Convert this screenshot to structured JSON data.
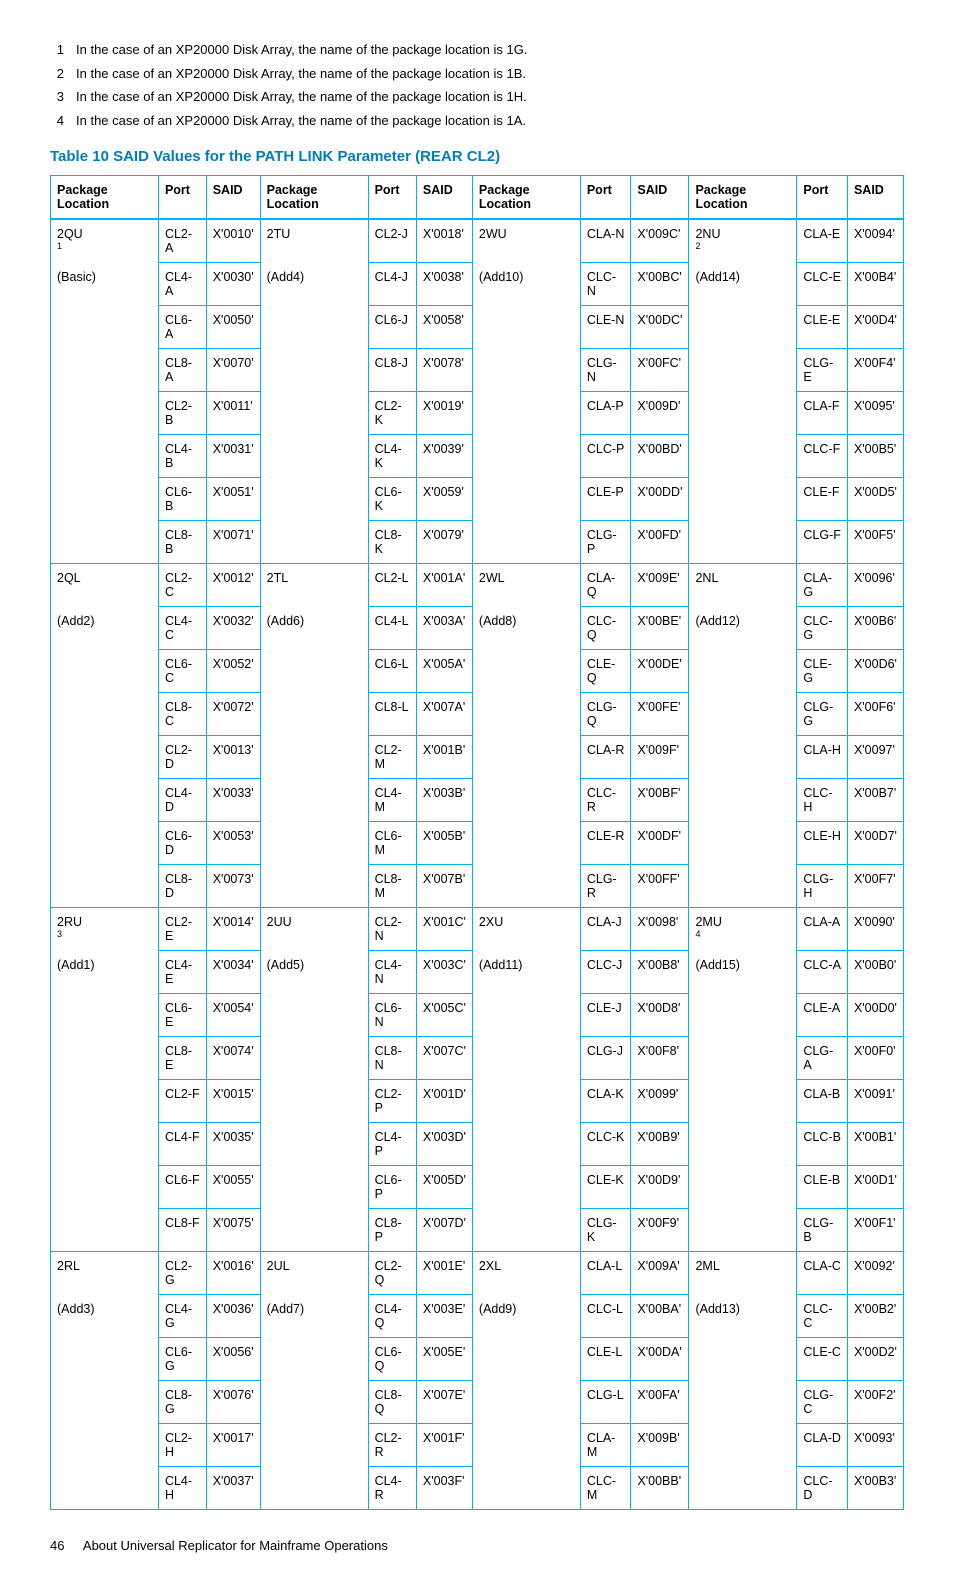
{
  "notes": [
    {
      "n": "1",
      "text": "In the case of an XP20000 Disk Array, the name of the package location is 1G."
    },
    {
      "n": "2",
      "text": "In the case of an XP20000 Disk Array, the name of the package location is 1B."
    },
    {
      "n": "3",
      "text": "In the case of an XP20000 Disk Array, the name of the package location is 1H."
    },
    {
      "n": "4",
      "text": "In the case of an XP20000 Disk Array, the name of the package location is 1A."
    }
  ],
  "table_title": "Table 10 SAID Values for the PATH LINK Parameter (REAR CL2)",
  "headers": [
    "Package Location",
    "Port",
    "SAID",
    "Package Location",
    "Port",
    "SAID",
    "Package Location",
    "Port",
    "SAID",
    "Package Location",
    "Port",
    "SAID"
  ],
  "groups": [
    {
      "pkgs": [
        {
          "line1": "2QU",
          "sub": "1",
          "line2": "(Basic)"
        },
        {
          "line1": "2TU",
          "sub": "",
          "line2": "(Add4)"
        },
        {
          "line1": "2WU",
          "sub": "",
          "line2": "(Add10)"
        },
        {
          "line1": "2NU",
          "sub": "2",
          "line2": "(Add14)"
        }
      ],
      "rows": [
        [
          "CL2-A",
          "X'0010'",
          "CL2-J",
          "X'0018'",
          "CLA-N",
          "X'009C'",
          "CLA-E",
          "X'0094'"
        ],
        [
          "CL4-A",
          "X'0030'",
          "CL4-J",
          "X'0038'",
          "CLC-N",
          "X'00BC'",
          "CLC-E",
          "X'00B4'"
        ],
        [
          "CL6-A",
          "X'0050'",
          "CL6-J",
          "X'0058'",
          "CLE-N",
          "X'00DC'",
          "CLE-E",
          "X'00D4'"
        ],
        [
          "CL8-A",
          "X'0070'",
          "CL8-J",
          "X'0078'",
          "CLG-N",
          "X'00FC'",
          "CLG-E",
          "X'00F4'"
        ],
        [
          "CL2-B",
          "X'0011'",
          "CL2-K",
          "X'0019'",
          "CLA-P",
          "X'009D'",
          "CLA-F",
          "X'0095'"
        ],
        [
          "CL4-B",
          "X'0031'",
          "CL4-K",
          "X'0039'",
          "CLC-P",
          "X'00BD'",
          "CLC-F",
          "X'00B5'"
        ],
        [
          "CL6-B",
          "X'0051'",
          "CL6-K",
          "X'0059'",
          "CLE-P",
          "X'00DD'",
          "CLE-F",
          "X'00D5'"
        ],
        [
          "CL8-B",
          "X'0071'",
          "CL8-K",
          "X'0079'",
          "CLG-P",
          "X'00FD'",
          "CLG-F",
          "X'00F5'"
        ]
      ]
    },
    {
      "pkgs": [
        {
          "line1": "2QL",
          "sub": "",
          "line2": "(Add2)"
        },
        {
          "line1": "2TL",
          "sub": "",
          "line2": "(Add6)"
        },
        {
          "line1": "2WL",
          "sub": "",
          "line2": "(Add8)"
        },
        {
          "line1": "2NL",
          "sub": "",
          "line2": "(Add12)"
        }
      ],
      "rows": [
        [
          "CL2-C",
          "X'0012'",
          "CL2-L",
          "X'001A'",
          "CLA-Q",
          "X'009E'",
          "CLA-G",
          "X'0096'"
        ],
        [
          "CL4-C",
          "X'0032'",
          "CL4-L",
          "X'003A'",
          "CLC-Q",
          "X'00BE'",
          "CLC-G",
          "X'00B6'"
        ],
        [
          "CL6-C",
          "X'0052'",
          "CL6-L",
          "X'005A'",
          "CLE-Q",
          "X'00DE'",
          "CLE-G",
          "X'00D6'"
        ],
        [
          "CL8-C",
          "X'0072'",
          "CL8-L",
          "X'007A'",
          "CLG-Q",
          "X'00FE'",
          "CLG-G",
          "X'00F6'"
        ],
        [
          "CL2-D",
          "X'0013'",
          "CL2-M",
          "X'001B'",
          "CLA-R",
          "X'009F'",
          "CLA-H",
          "X'0097'"
        ],
        [
          "CL4-D",
          "X'0033'",
          "CL4-M",
          "X'003B'",
          "CLC-R",
          "X'00BF'",
          "CLC-H",
          "X'00B7'"
        ],
        [
          "CL6-D",
          "X'0053'",
          "CL6-M",
          "X'005B'",
          "CLE-R",
          "X'00DF'",
          "CLE-H",
          "X'00D7'"
        ],
        [
          "CL8-D",
          "X'0073'",
          "CL8-M",
          "X'007B'",
          "CLG-R",
          "X'00FF'",
          "CLG-H",
          "X'00F7'"
        ]
      ]
    },
    {
      "pkgs": [
        {
          "line1": "2RU",
          "sub": "3",
          "line2": "(Add1)"
        },
        {
          "line1": "2UU",
          "sub": "",
          "line2": "(Add5)"
        },
        {
          "line1": "2XU",
          "sub": "",
          "line2": "(Add11)"
        },
        {
          "line1": "2MU",
          "sub": "4",
          "line2": "(Add15)"
        }
      ],
      "rows": [
        [
          "CL2-E",
          "X'0014'",
          "CL2-N",
          "X'001C'",
          "CLA-J",
          "X'0098'",
          "CLA-A",
          "X'0090'"
        ],
        [
          "CL4-E",
          "X'0034'",
          "CL4-N",
          "X'003C'",
          "CLC-J",
          "X'00B8'",
          "CLC-A",
          "X'00B0'"
        ],
        [
          "CL6-E",
          "X'0054'",
          "CL6-N",
          "X'005C'",
          "CLE-J",
          "X'00D8'",
          "CLE-A",
          "X'00D0'"
        ],
        [
          "CL8-E",
          "X'0074'",
          "CL8-N",
          "X'007C'",
          "CLG-J",
          "X'00F8'",
          "CLG-A",
          "X'00F0'"
        ],
        [
          "CL2-F",
          "X'0015'",
          "CL2-P",
          "X'001D'",
          "CLA-K",
          "X'0099'",
          "CLA-B",
          "X'0091'"
        ],
        [
          "CL4-F",
          "X'0035'",
          "CL4-P",
          "X'003D'",
          "CLC-K",
          "X'00B9'",
          "CLC-B",
          "X'00B1'"
        ],
        [
          "CL6-F",
          "X'0055'",
          "CL6-P",
          "X'005D'",
          "CLE-K",
          "X'00D9'",
          "CLE-B",
          "X'00D1'"
        ],
        [
          "CL8-F",
          "X'0075'",
          "CL8-P",
          "X'007D'",
          "CLG-K",
          "X'00F9'",
          "CLG-B",
          "X'00F1'"
        ]
      ]
    },
    {
      "pkgs": [
        {
          "line1": "2RL",
          "sub": "",
          "line2": "(Add3)"
        },
        {
          "line1": "2UL",
          "sub": "",
          "line2": "(Add7)"
        },
        {
          "line1": "2XL",
          "sub": "",
          "line2": "(Add9)"
        },
        {
          "line1": "2ML",
          "sub": "",
          "line2": "(Add13)"
        }
      ],
      "rows": [
        [
          "CL2-G",
          "X'0016'",
          "CL2-Q",
          "X'001E'",
          "CLA-L",
          "X'009A'",
          "CLA-C",
          "X'0092'"
        ],
        [
          "CL4-G",
          "X'0036'",
          "CL4-Q",
          "X'003E'",
          "CLC-L",
          "X'00BA'",
          "CLC-C",
          "X'00B2'"
        ],
        [
          "CL6-G",
          "X'0056'",
          "CL6-Q",
          "X'005E'",
          "CLE-L",
          "X'00DA'",
          "CLE-C",
          "X'00D2'"
        ],
        [
          "CL8-G",
          "X'0076'",
          "CL8-Q",
          "X'007E'",
          "CLG-L",
          "X'00FA'",
          "CLG-C",
          "X'00F2'"
        ],
        [
          "CL2-H",
          "X'0017'",
          "CL2-R",
          "X'001F'",
          "CLA-M",
          "X'009B'",
          "CLA-D",
          "X'0093'"
        ],
        [
          "CL4-H",
          "X'0037'",
          "CL4-R",
          "X'003F'",
          "CLC-M",
          "X'00BB'",
          "CLC-D",
          "X'00B3'"
        ]
      ]
    }
  ],
  "footer": {
    "page": "46",
    "text": "About Universal Replicator for Mainframe Operations"
  },
  "colors": {
    "accent": "#007dba",
    "border": "#00b0f0",
    "text": "#000000",
    "bg": "#ffffff"
  }
}
